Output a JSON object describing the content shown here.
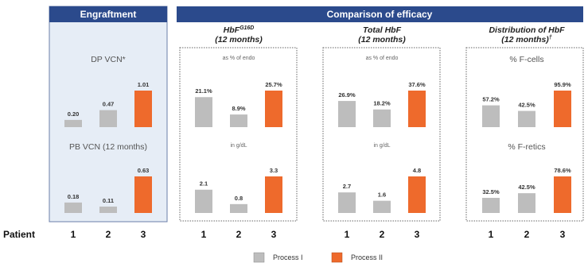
{
  "headers": {
    "engraftment": "Engraftment",
    "comparison": "Comparison of efficacy"
  },
  "subtitles": {
    "hbf_g16d_main": "HbF",
    "hbf_g16d_sup": "G16D",
    "hbf_g16d_line2": "(12 months)",
    "total_hbf_line1": "Total HbF",
    "total_hbf_line2": "(12 months)",
    "distribution_line1": "Distribution of HbF",
    "distribution_line2": "(12 months)",
    "distribution_sup": "†"
  },
  "x_axis": {
    "title": "Patient",
    "categories": [
      "1",
      "2",
      "3"
    ]
  },
  "legend": [
    {
      "label": "Process I",
      "color": "#bdbdbd"
    },
    {
      "label": "Process II",
      "color": "#ee6a2c"
    }
  ],
  "colors": {
    "process_1": "#bdbdbd",
    "process_2": "#ee6a2c",
    "header_bg": "#2b4a8c",
    "engraftment_bg": "#e6edf6"
  },
  "chart_data": [
    {
      "type": "bar",
      "panel": "engraftment",
      "label": "DP VCN*",
      "categories": [
        "1",
        "2",
        "3"
      ],
      "values": [
        0.2,
        0.47,
        1.01
      ],
      "labels": [
        "0.20",
        "0.47",
        "1.01"
      ],
      "process": [
        "Process I",
        "Process I",
        "Process II"
      ],
      "ymax": 1.01
    },
    {
      "type": "bar",
      "panel": "engraftment",
      "label": "PB VCN (12 months)",
      "categories": [
        "1",
        "2",
        "3"
      ],
      "values": [
        0.18,
        0.11,
        0.63
      ],
      "labels": [
        "0.18",
        "0.11",
        "0.63"
      ],
      "process": [
        "Process I",
        "Process I",
        "Process II"
      ],
      "ymax": 0.63
    },
    {
      "type": "bar",
      "panel": "hbf_g16d",
      "label": "as % of endo",
      "categories": [
        "1",
        "2",
        "3"
      ],
      "values": [
        21.1,
        8.9,
        25.7
      ],
      "labels": [
        "21.1%",
        "8.9%",
        "25.7%"
      ],
      "process": [
        "Process I",
        "Process I",
        "Process II"
      ],
      "ymax": 25.7
    },
    {
      "type": "bar",
      "panel": "hbf_g16d",
      "label": "in g/dL",
      "categories": [
        "1",
        "2",
        "3"
      ],
      "values": [
        2.1,
        0.8,
        3.3
      ],
      "labels": [
        "2.1",
        "0.8",
        "3.3"
      ],
      "process": [
        "Process I",
        "Process I",
        "Process II"
      ],
      "ymax": 3.3
    },
    {
      "type": "bar",
      "panel": "total_hbf",
      "label": "as % of endo",
      "categories": [
        "1",
        "2",
        "3"
      ],
      "values": [
        26.9,
        18.2,
        37.6
      ],
      "labels": [
        "26.9%",
        "18.2%",
        "37.6%"
      ],
      "process": [
        "Process I",
        "Process I",
        "Process II"
      ],
      "ymax": 37.6
    },
    {
      "type": "bar",
      "panel": "total_hbf",
      "label": "in g/dL",
      "categories": [
        "1",
        "2",
        "3"
      ],
      "values": [
        2.7,
        1.6,
        4.8
      ],
      "labels": [
        "2.7",
        "1.6",
        "4.8"
      ],
      "process": [
        "Process I",
        "Process I",
        "Process II"
      ],
      "ymax": 4.8
    },
    {
      "type": "bar",
      "panel": "distribution",
      "label": "% F-cells",
      "categories": [
        "1",
        "2",
        "3"
      ],
      "values": [
        57.2,
        42.5,
        95.9
      ],
      "labels": [
        "57.2%",
        "42.5%",
        "95.9%"
      ],
      "process": [
        "Process I",
        "Process I",
        "Process II"
      ],
      "ymax": 95.9
    },
    {
      "type": "bar",
      "panel": "distribution",
      "label": "% F-retics",
      "categories": [
        "1",
        "2",
        "3"
      ],
      "values": [
        32.5,
        42.5,
        78.6
      ],
      "labels": [
        "32.5%",
        "42.5%",
        "78.6%"
      ],
      "process": [
        "Process I",
        "Process I",
        "Process II"
      ],
      "ymax": 78.6
    }
  ]
}
